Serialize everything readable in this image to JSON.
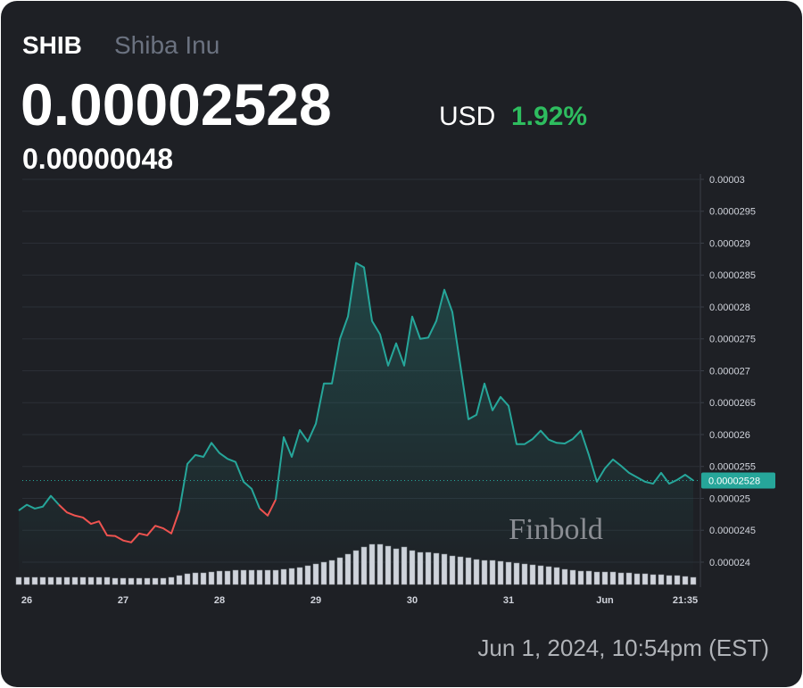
{
  "header": {
    "symbol": "SHIB",
    "name": "Shiba Inu",
    "price": "0.00002528",
    "currency": "USD",
    "change_percent": "1.92%",
    "change": "0.00000048"
  },
  "chart_data": {
    "type": "line",
    "categories": [
      null,
      "26",
      null,
      null,
      null,
      null,
      null,
      null,
      null,
      null,
      null,
      null,
      null,
      "27",
      null,
      null,
      null,
      null,
      null,
      null,
      null,
      null,
      null,
      null,
      null,
      "28",
      null,
      null,
      null,
      null,
      null,
      null,
      null,
      null,
      null,
      null,
      null,
      "29",
      null,
      null,
      null,
      null,
      null,
      null,
      null,
      null,
      null,
      null,
      null,
      "30",
      null,
      null,
      null,
      null,
      null,
      null,
      null,
      null,
      null,
      null,
      null,
      "31",
      null,
      null,
      null,
      null,
      null,
      null,
      null,
      null,
      null,
      null,
      null,
      "Jun",
      null,
      null,
      null,
      null,
      null,
      null,
      null,
      null,
      null,
      "21:35",
      null
    ],
    "values": [
      2.481e-05,
      2.49e-05,
      2.484e-05,
      2.487e-05,
      2.504e-05,
      2.49e-05,
      2.478e-05,
      2.473e-05,
      2.47e-05,
      2.46e-05,
      2.464e-05,
      2.442e-05,
      2.441e-05,
      2.434e-05,
      2.431e-05,
      2.445e-05,
      2.442e-05,
      2.457e-05,
      2.453e-05,
      2.445e-05,
      2.481e-05,
      2.554e-05,
      2.568e-05,
      2.565e-05,
      2.587e-05,
      2.571e-05,
      2.562e-05,
      2.557e-05,
      2.526e-05,
      2.515e-05,
      2.484e-05,
      2.473e-05,
      2.498e-05,
      2.596e-05,
      2.565e-05,
      2.607e-05,
      2.589e-05,
      2.617e-05,
      2.68e-05,
      2.68e-05,
      2.75e-05,
      2.785e-05,
      2.869e-05,
      2.862e-05,
      2.778e-05,
      2.757e-05,
      2.708e-05,
      2.743e-05,
      2.708e-05,
      2.785e-05,
      2.75e-05,
      2.752e-05,
      2.778e-05,
      2.827e-05,
      2.792e-05,
      2.708e-05,
      2.624e-05,
      2.631e-05,
      2.68e-05,
      2.638e-05,
      2.659e-05,
      2.645e-05,
      2.585e-05,
      2.585e-05,
      2.593e-05,
      2.606e-05,
      2.592e-05,
      2.587e-05,
      2.586e-05,
      2.593e-05,
      2.606e-05,
      2.568e-05,
      2.526e-05,
      2.547e-05,
      2.561e-05,
      2.551e-05,
      2.54e-05,
      2.533e-05,
      2.526e-05,
      2.523e-05,
      2.54e-05,
      2.523e-05,
      2.529e-05,
      2.537e-05,
      2.528e-05
    ],
    "volume": [
      8,
      8,
      8,
      8,
      8,
      8,
      8,
      8,
      8,
      8,
      8,
      8,
      7,
      7,
      7,
      7,
      7,
      7,
      7,
      8,
      10,
      12,
      13,
      13,
      14,
      15,
      15,
      16,
      16,
      16,
      16,
      16,
      16,
      17,
      18,
      19,
      21,
      23,
      25,
      27,
      30,
      34,
      38,
      42,
      45,
      45,
      43,
      40,
      42,
      38,
      36,
      36,
      35,
      34,
      32,
      31,
      30,
      28,
      27,
      27,
      26,
      25,
      24,
      23,
      22,
      21,
      20,
      19,
      17,
      16,
      15,
      15,
      14,
      14,
      14,
      13,
      13,
      12,
      12,
      11,
      11,
      10,
      10,
      9,
      8
    ],
    "up_color": "#26a69a",
    "down_color": "#ef5350",
    "volume_color": "#d1d4dc",
    "ylim": [
      2.365e-05,
      3e-05
    ],
    "yticks": [
      3e-05,
      2.95e-05,
      2.9e-05,
      2.85e-05,
      2.8e-05,
      2.75e-05,
      2.7e-05,
      2.65e-05,
      2.6e-05,
      2.55e-05,
      2.5e-05,
      2.45e-05,
      2.4e-05
    ],
    "grid": true
  },
  "watermark": "Finbold",
  "footer": {
    "timestamp": "Jun 1, 2024, 10:54pm (EST)"
  }
}
